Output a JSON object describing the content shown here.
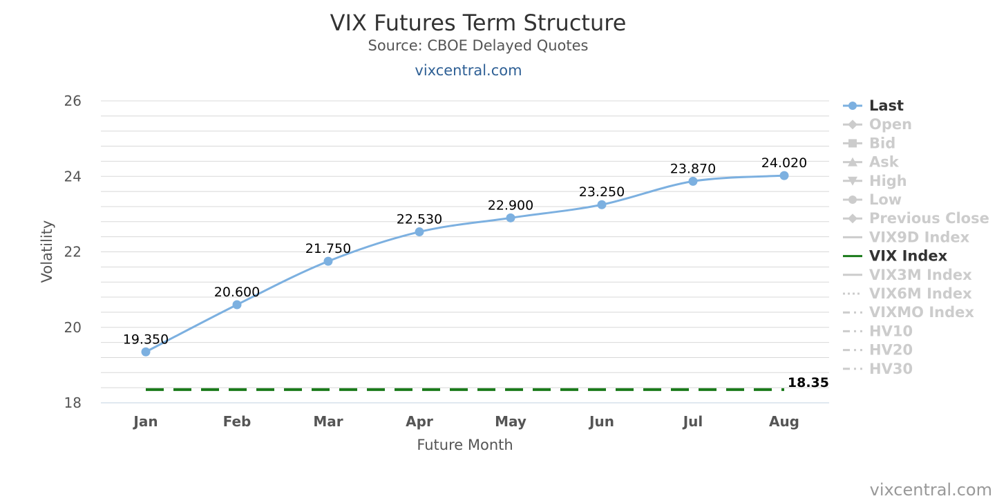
{
  "chart_data": {
    "type": "line",
    "title": "VIX Futures Term Structure",
    "subtitle": "Source: CBOE Delayed Quotes",
    "site": "vixcentral.com",
    "credit": "vixcentral.com",
    "xlabel": "Future Month",
    "ylabel": "Volatility",
    "ylim": [
      18,
      26
    ],
    "yticks": [
      18,
      20,
      22,
      24,
      26
    ],
    "grid": true,
    "legend_position": "right",
    "categories": [
      "Jan",
      "Feb",
      "Mar",
      "Apr",
      "May",
      "Jun",
      "Jul",
      "Aug"
    ],
    "series": [
      {
        "name": "Last",
        "values": [
          19.35,
          20.6,
          21.75,
          22.53,
          22.9,
          23.25,
          23.87,
          24.02
        ],
        "labels": [
          "19.350",
          "20.600",
          "21.750",
          "22.530",
          "22.900",
          "23.250",
          "23.870",
          "24.020"
        ],
        "color": "#7cb0e0"
      },
      {
        "name": "VIX Index",
        "value": 18.35,
        "label": "18.35",
        "color": "#1a7a1a"
      }
    ],
    "legend": [
      {
        "name": "Last",
        "active": true,
        "symbol": "circle"
      },
      {
        "name": "Open",
        "active": false,
        "symbol": "diamond"
      },
      {
        "name": "Bid",
        "active": false,
        "symbol": "square"
      },
      {
        "name": "Ask",
        "active": false,
        "symbol": "triangle"
      },
      {
        "name": "High",
        "active": false,
        "symbol": "triangle-down"
      },
      {
        "name": "Low",
        "active": false,
        "symbol": "circle"
      },
      {
        "name": "Previous Close",
        "active": false,
        "symbol": "diamond"
      },
      {
        "name": "VIX9D Index",
        "active": false,
        "symbol": "line-solid"
      },
      {
        "name": "VIX Index",
        "active": true,
        "symbol": "line-solid"
      },
      {
        "name": "VIX3M Index",
        "active": false,
        "symbol": "line-solid"
      },
      {
        "name": "VIX6M Index",
        "active": false,
        "symbol": "line-dotted"
      },
      {
        "name": "VIXMO Index",
        "active": false,
        "symbol": "line-dashdot"
      },
      {
        "name": "HV10",
        "active": false,
        "symbol": "line-dashdot"
      },
      {
        "name": "HV20",
        "active": false,
        "symbol": "line-dashdot"
      },
      {
        "name": "HV30",
        "active": false,
        "symbol": "line-dashdot"
      }
    ],
    "colors": {
      "last": "#7cb0e0",
      "vix": "#1a7a1a",
      "inactive": "#cccccc",
      "grid": "#d8d8d8",
      "axis": "#c0d0e0"
    }
  }
}
